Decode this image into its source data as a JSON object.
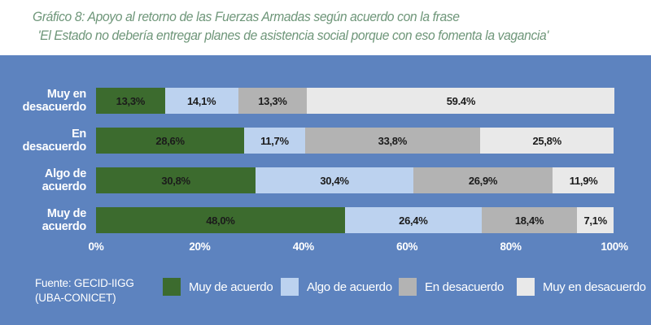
{
  "title": {
    "line1": "Gráfico 8: Apoyo al retorno de las Fuerzas Armadas según acuerdo con la frase",
    "line2": "'El Estado no debería entregar planes de asistencia social porque con eso fomenta la vagancia'"
  },
  "source": {
    "line1": "Fuente: GECID-IIGG",
    "line2": "(UBA-CONICET)"
  },
  "colors": {
    "panel_bg": "#5d83bf",
    "title_text": "#6e9679",
    "panel_text": "#ffffff",
    "value_label_text": "#1b1b1b",
    "muy_de_acuerdo": "#3c6b2e",
    "algo_de_acuerdo": "#bcd2ef",
    "en_desacuerdo": "#b3b3b3",
    "muy_en_desacuerdo": "#e9e9e9"
  },
  "chart_data": {
    "type": "bar",
    "orientation": "horizontal",
    "stacked": true,
    "categories": [
      "Muy en desacuerdo",
      "En desacuerdo",
      "Algo de acuerdo",
      "Muy de acuerdo"
    ],
    "category_label_lines": [
      [
        "Muy en",
        "desacuerdo"
      ],
      [
        "En",
        "desacuerdo"
      ],
      [
        "Algo de",
        "acuerdo"
      ],
      [
        "Muy de",
        "acuerdo"
      ]
    ],
    "series": [
      {
        "name": "Muy de acuerdo",
        "color": "#3c6b2e",
        "values": [
          13.3,
          28.6,
          30.8,
          48.0
        ],
        "labels": [
          "13,3%",
          "28,6%",
          "30,8%",
          "48,0%"
        ]
      },
      {
        "name": "Algo de acuerdo",
        "color": "#bcd2ef",
        "values": [
          14.1,
          11.7,
          30.4,
          26.4
        ],
        "labels": [
          "14,1%",
          "11,7%",
          "30,4%",
          "26,4%"
        ]
      },
      {
        "name": "En desacuerdo",
        "color": "#b3b3b3",
        "values": [
          13.3,
          33.8,
          26.9,
          18.4
        ],
        "labels": [
          "13,3%",
          "33,8%",
          "26,9%",
          "18,4%"
        ]
      },
      {
        "name": "Muy en desacuerdo",
        "color": "#e9e9e9",
        "values": [
          59.4,
          25.8,
          11.9,
          7.1
        ],
        "labels": [
          "59.4%",
          "25,8%",
          "11,9%",
          "7,1%"
        ]
      }
    ],
    "x_ticks": [
      "0%",
      "20%",
      "40%",
      "60%",
      "80%",
      "100%"
    ],
    "xlim": [
      0,
      100
    ],
    "grid": false,
    "legend": [
      "Muy de acuerdo",
      "Algo de acuerdo",
      "En desacuerdo",
      "Muy en desacuerdo"
    ],
    "legend_position": "bottom"
  }
}
